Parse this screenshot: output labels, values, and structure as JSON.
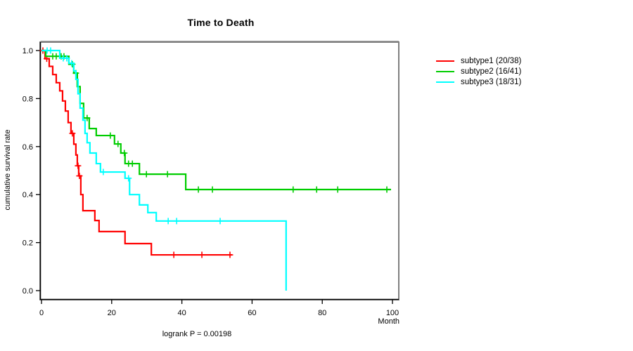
{
  "title": "Time to Death",
  "footer": "logrank P = 0.00198",
  "x_axis": {
    "label": "Month",
    "tick_labels": [
      "0",
      "20",
      "40",
      "60",
      "80",
      "100"
    ],
    "tick_values": [
      0,
      20,
      40,
      60,
      80,
      100
    ]
  },
  "y_axis": {
    "label": "cumulative survival rate",
    "tick_labels": [
      "0.0",
      "0.2",
      "0.4",
      "0.6",
      "0.8",
      "1.0"
    ],
    "tick_values": [
      0,
      0.2,
      0.4,
      0.6,
      0.8,
      1.0
    ]
  },
  "chart_data": {
    "type": "line",
    "subtype": "kaplan-meier-step-curves",
    "title": "Time to Death",
    "xlabel": "Month",
    "ylabel": "cumulative survival rate",
    "xlim": [
      0,
      103
    ],
    "ylim": [
      -0.04,
      1.04
    ],
    "grid": false,
    "legend_position": "right-outside",
    "annotation": "logrank P = 0.00198",
    "frame_color": "#808080",
    "axis_color": "#000000",
    "series": [
      {
        "name": "subtype1 (20/38)",
        "color": "#FF0000",
        "end_time": 54.3,
        "steps": [
          [
            0,
            1.0
          ],
          [
            1.0,
            0.966
          ],
          [
            2.2,
            0.934
          ],
          [
            3.2,
            0.9
          ],
          [
            4.2,
            0.866
          ],
          [
            5.2,
            0.832
          ],
          [
            6.0,
            0.79
          ],
          [
            6.8,
            0.748
          ],
          [
            7.6,
            0.7
          ],
          [
            8.4,
            0.655
          ],
          [
            9.2,
            0.61
          ],
          [
            9.8,
            0.565
          ],
          [
            10.2,
            0.52
          ],
          [
            10.6,
            0.478
          ],
          [
            11.2,
            0.4
          ],
          [
            11.8,
            0.333
          ],
          [
            15.2,
            0.292
          ],
          [
            16.4,
            0.246
          ],
          [
            23.8,
            0.196
          ],
          [
            31.3,
            0.149
          ]
        ],
        "censors": [
          [
            0.4,
            1.0
          ],
          [
            1.5,
            0.966
          ],
          [
            8.8,
            0.655
          ],
          [
            10.4,
            0.52
          ],
          [
            10.8,
            0.478
          ],
          [
            37.7,
            0.149
          ],
          [
            45.7,
            0.149
          ],
          [
            53.7,
            0.149
          ]
        ]
      },
      {
        "name": "subtype2 (16/41)",
        "color": "#00CD00",
        "end_time": 99.6,
        "steps": [
          [
            0,
            1.0
          ],
          [
            1.2,
            0.976
          ],
          [
            7.8,
            0.943
          ],
          [
            9.2,
            0.906
          ],
          [
            10.2,
            0.85
          ],
          [
            11.0,
            0.78
          ],
          [
            12.0,
            0.719
          ],
          [
            13.6,
            0.675
          ],
          [
            15.6,
            0.646
          ],
          [
            20.8,
            0.611
          ],
          [
            22.6,
            0.573
          ],
          [
            23.8,
            0.529
          ],
          [
            27.9,
            0.485
          ],
          [
            41.1,
            0.421
          ]
        ],
        "censors": [
          [
            3.2,
            0.976
          ],
          [
            4.2,
            0.976
          ],
          [
            5.6,
            0.976
          ],
          [
            6.4,
            0.976
          ],
          [
            8.8,
            0.943
          ],
          [
            9.8,
            0.906
          ],
          [
            13.0,
            0.719
          ],
          [
            19.6,
            0.646
          ],
          [
            21.8,
            0.611
          ],
          [
            23.6,
            0.573
          ],
          [
            24.8,
            0.529
          ],
          [
            25.9,
            0.529
          ],
          [
            29.9,
            0.485
          ],
          [
            35.9,
            0.485
          ],
          [
            44.7,
            0.421
          ],
          [
            48.7,
            0.421
          ],
          [
            71.7,
            0.421
          ],
          [
            78.4,
            0.421
          ],
          [
            84.4,
            0.421
          ],
          [
            98.4,
            0.421
          ]
        ]
      },
      {
        "name": "subtype3 (18/31)",
        "color": "#00FFFF",
        "end_time": 69.7,
        "steps": [
          [
            0,
            1.0
          ],
          [
            5.2,
            0.968
          ],
          [
            7.8,
            0.947
          ],
          [
            9.2,
            0.915
          ],
          [
            9.8,
            0.88
          ],
          [
            10.4,
            0.82
          ],
          [
            11.0,
            0.76
          ],
          [
            11.8,
            0.71
          ],
          [
            12.4,
            0.655
          ],
          [
            13.0,
            0.616
          ],
          [
            13.8,
            0.573
          ],
          [
            15.6,
            0.529
          ],
          [
            16.8,
            0.494
          ],
          [
            23.8,
            0.468
          ],
          [
            25.1,
            0.4
          ],
          [
            27.9,
            0.357
          ],
          [
            30.3,
            0.325
          ],
          [
            32.7,
            0.29
          ],
          [
            69.7,
            0.0
          ]
        ],
        "censors": [
          [
            1.6,
            1.0
          ],
          [
            2.6,
            1.0
          ],
          [
            6.2,
            0.968
          ],
          [
            7.2,
            0.968
          ],
          [
            8.6,
            0.947
          ],
          [
            17.6,
            0.494
          ],
          [
            24.8,
            0.468
          ],
          [
            36.1,
            0.29
          ],
          [
            38.5,
            0.29
          ],
          [
            50.9,
            0.29
          ]
        ]
      }
    ]
  }
}
